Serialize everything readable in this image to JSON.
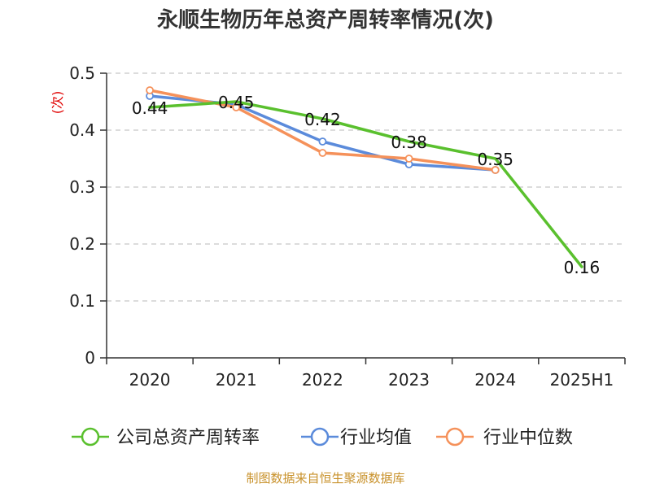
{
  "chart_data": {
    "type": "line",
    "title": "永顺生物历年总资产周转率情况(次)",
    "ylabel": "(次)",
    "xlabel": "",
    "categories": [
      "2020",
      "2021",
      "2022",
      "2023",
      "2024",
      "2025H1"
    ],
    "ylim": [
      0,
      0.5
    ],
    "yticks": [
      "0",
      "0.1",
      "0.2",
      "0.3",
      "0.4",
      "0.5"
    ],
    "ytick_values": [
      0,
      0.1,
      0.2,
      0.3,
      0.4,
      0.5
    ],
    "grid": true,
    "legend_position": "bottom",
    "series": [
      {
        "name": "公司总资产周转率",
        "color": "#5ac02e",
        "values": [
          0.44,
          0.45,
          0.42,
          0.38,
          0.35,
          0.16
        ],
        "labels": [
          "0.44",
          "0.45",
          "0.42",
          "0.38",
          "0.35",
          "0.16"
        ],
        "markers": false
      },
      {
        "name": "行业均值",
        "color": "#5b8bdb",
        "values": [
          0.46,
          0.445,
          0.38,
          0.34,
          0.33,
          null
        ],
        "markers": true
      },
      {
        "name": "行业中位数",
        "color": "#f5915a",
        "values": [
          0.47,
          0.44,
          0.36,
          0.35,
          0.33,
          null
        ],
        "markers": true
      }
    ],
    "source": "制图数据来自恒生聚源数据库"
  }
}
